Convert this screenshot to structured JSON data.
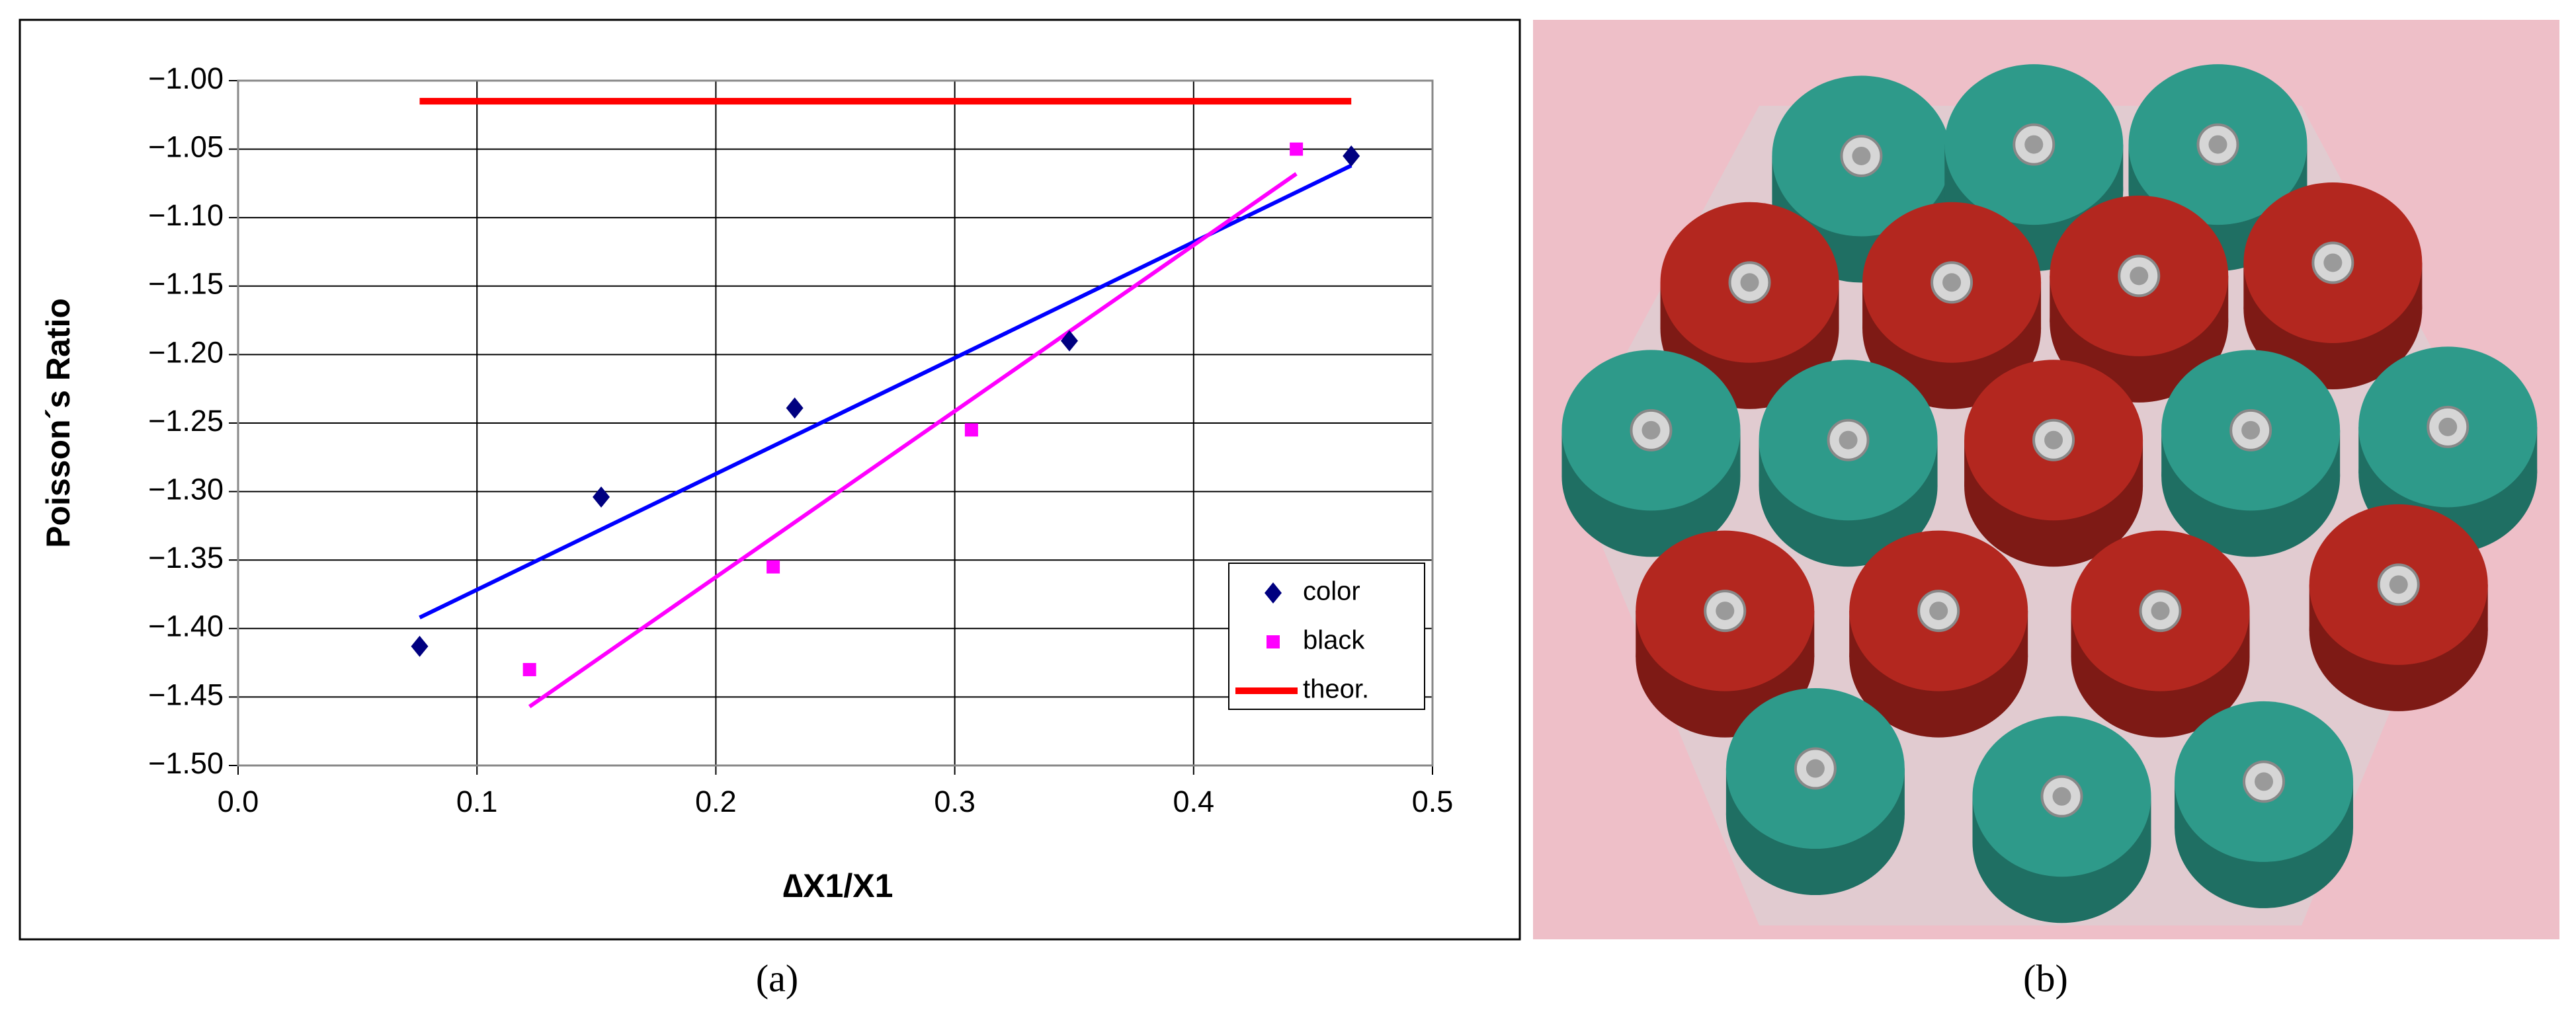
{
  "chart_data": {
    "type": "scatter",
    "xlabel": "∆X1/X1",
    "ylabel": "Poisson´s Ratio",
    "xlim": [
      0,
      0.5
    ],
    "ylim": [
      -1.5,
      -1.0
    ],
    "xticks": [
      {
        "value": 0,
        "label": "0.0"
      },
      0.1,
      0.2,
      0.3,
      0.4,
      0.5
    ],
    "yticks": [
      {
        "value": -1.5,
        "label": "−1.50"
      },
      {
        "value": -1.45,
        "label": "−1.45"
      },
      {
        "value": -1.4,
        "label": "−1.40"
      },
      {
        "value": -1.35,
        "label": "−1.35"
      },
      {
        "value": -1.3,
        "label": "−1.30"
      },
      {
        "value": -1.25,
        "label": "−1.25"
      },
      {
        "value": -1.2,
        "label": "−1.20"
      },
      {
        "value": -1.15,
        "label": "−1.15"
      },
      {
        "value": -1.1,
        "label": "−1.10"
      },
      {
        "value": -1.05,
        "label": "−1.05"
      },
      {
        "value": -1.0,
        "label": "−1.00"
      }
    ],
    "grid": true,
    "legend": "lower right",
    "series": [
      {
        "name": "color",
        "color": "#000080",
        "marker": "diamond",
        "x": [
          0.076,
          0.152,
          0.233,
          0.348,
          0.466
        ],
        "values": [
          -1.413,
          -1.304,
          -1.239,
          -1.19,
          -1.055
        ]
      },
      {
        "name": "black",
        "color": "#ff00ff",
        "marker": "square",
        "x": [
          0.122,
          0.224,
          0.307,
          0.443
        ],
        "values": [
          -1.43,
          -1.355,
          -1.255,
          -1.05
        ]
      },
      {
        "name": "theor.",
        "color": "#ff0000",
        "marker": "line",
        "x": [
          0.076,
          0.466
        ],
        "values": [
          -1.015,
          -1.015
        ]
      }
    ],
    "trendlines": [
      {
        "color": "#0000ff",
        "x": [
          0.076,
          0.466
        ],
        "values": [
          -1.392,
          -1.062
        ]
      },
      {
        "color": "#ff00ff",
        "x": [
          0.122,
          0.443
        ],
        "values": [
          -1.457,
          -1.068
        ]
      }
    ]
  },
  "captions": [
    "(a)",
    "(b)"
  ]
}
